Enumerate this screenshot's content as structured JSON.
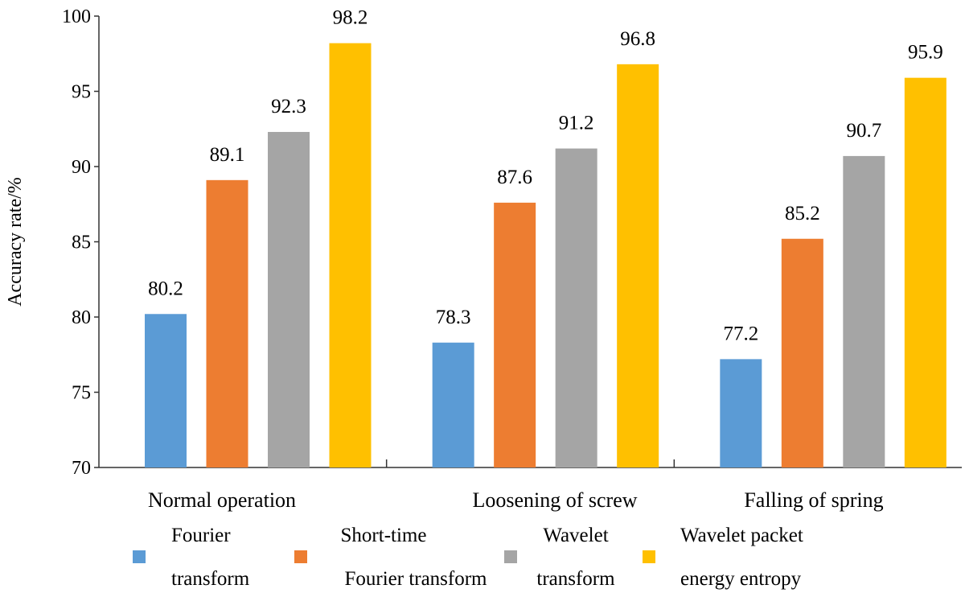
{
  "chart_data": {
    "type": "bar",
    "title": "",
    "xlabel": "",
    "ylabel": "Accuracy rate/%",
    "ylim": [
      70,
      100
    ],
    "yticks": [
      70,
      75,
      80,
      85,
      90,
      95,
      100
    ],
    "categories": [
      "Normal operation",
      "Loosening of  screw",
      "Falling of spring"
    ],
    "series": [
      {
        "name_lines": [
          "Fourier",
          "transform"
        ],
        "color": "#5b9bd5",
        "values": [
          80.2,
          78.3,
          77.2
        ]
      },
      {
        "name_lines": [
          "Short-time",
          "Fourier transform"
        ],
        "color": "#ed7d31",
        "values": [
          89.1,
          87.6,
          85.2
        ]
      },
      {
        "name_lines": [
          "Wavelet",
          "transform"
        ],
        "color": "#a5a5a5",
        "values": [
          92.3,
          91.2,
          90.7
        ]
      },
      {
        "name_lines": [
          "Wavelet packet",
          "energy entropy"
        ],
        "color": "#ffc000",
        "values": [
          98.2,
          96.8,
          95.9
        ]
      }
    ],
    "grid": false,
    "legend_position": "bottom",
    "data_labels": true
  }
}
